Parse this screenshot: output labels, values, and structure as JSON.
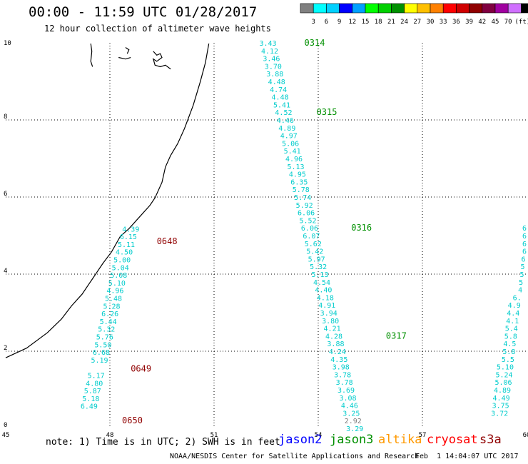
{
  "header": {
    "title": "00:00 - 11:59 UTC 01/28/2017",
    "subtitle": "12 hour collection of altimeter wave heights"
  },
  "colorbar": {
    "unit": "(ft)",
    "colors": [
      "#808080",
      "#00ffff",
      "#00d0ff",
      "#0000ff",
      "#00a0ff",
      "#00ff00",
      "#00d000",
      "#009000",
      "#ffff00",
      "#ffc000",
      "#ff8000",
      "#ff0000",
      "#d00000",
      "#900000",
      "#800040",
      "#a000a0",
      "#d070ff",
      "#000000"
    ],
    "labels": [
      "3",
      "6",
      "9",
      "12",
      "15",
      "18",
      "21",
      "24",
      "27",
      "30",
      "33",
      "36",
      "39",
      "42",
      "45",
      "70"
    ]
  },
  "footer": {
    "note": "note: 1) Time is in UTC; 2) SWH is in feet",
    "satellites": [
      {
        "name": "jason2",
        "color": "#0000ff"
      },
      {
        "name": "jason3",
        "color": "#009000"
      },
      {
        "name": "altika",
        "color": "#ff9900"
      },
      {
        "name": "cryosat",
        "color": "#ff0000"
      },
      {
        "name": "s3a",
        "color": "#900000"
      }
    ],
    "credit": "NOAA/NESDIS Center for Satellite Applications and Research",
    "timestamp": "Feb  1 14:04:07 UTC 2017"
  },
  "chart_data": {
    "type": "scatter",
    "xlim": [
      45,
      60
    ],
    "ylim": [
      0,
      10
    ],
    "xticks": [
      "45",
      "48",
      "51",
      "54",
      "57",
      "60"
    ],
    "yticks": [
      "0",
      "2",
      "4",
      "6",
      "8",
      "10"
    ],
    "grid": true,
    "tracks": [
      {
        "name": "track-1",
        "color": "#00cccc",
        "points": [
          {
            "x": 48.85,
            "y": 5.18,
            "v": "4.39"
          },
          {
            "x": 48.78,
            "y": 4.98,
            "v": "6.15"
          },
          {
            "x": 48.72,
            "y": 4.78,
            "v": "5.11"
          },
          {
            "x": 48.66,
            "y": 4.58,
            "v": "4.50"
          },
          {
            "x": 48.6,
            "y": 4.38,
            "v": "5.00"
          },
          {
            "x": 48.55,
            "y": 4.18,
            "v": "5.04"
          },
          {
            "x": 48.5,
            "y": 3.98,
            "v": "5.08"
          },
          {
            "x": 48.45,
            "y": 3.78,
            "v": "5.10"
          },
          {
            "x": 48.4,
            "y": 3.58,
            "v": "4.96"
          },
          {
            "x": 48.35,
            "y": 3.38,
            "v": "5.48"
          },
          {
            "x": 48.3,
            "y": 3.18,
            "v": "5.28"
          },
          {
            "x": 48.25,
            "y": 2.98,
            "v": "6.26"
          },
          {
            "x": 48.2,
            "y": 2.78,
            "v": "5.44"
          },
          {
            "x": 48.15,
            "y": 2.58,
            "v": "5.32"
          },
          {
            "x": 48.1,
            "y": 2.38,
            "v": "5.76"
          },
          {
            "x": 48.05,
            "y": 2.18,
            "v": "5.50"
          },
          {
            "x": 48.0,
            "y": 1.98,
            "v": "6.68"
          },
          {
            "x": 47.95,
            "y": 1.78,
            "v": "5.19"
          },
          {
            "x": 47.85,
            "y": 1.38,
            "v": "5.17"
          },
          {
            "x": 47.8,
            "y": 1.18,
            "v": "4.80"
          },
          {
            "x": 47.75,
            "y": 0.98,
            "v": "5.87"
          },
          {
            "x": 47.7,
            "y": 0.78,
            "v": "5.18"
          },
          {
            "x": 47.65,
            "y": 0.58,
            "v": "6.49"
          }
        ],
        "time_labels": [
          {
            "x": 49.35,
            "y": 4.85,
            "text": "0648",
            "color": "#900000"
          },
          {
            "x": 48.6,
            "y": 1.55,
            "text": "0649",
            "color": "#900000"
          },
          {
            "x": 48.35,
            "y": 0.2,
            "text": "0650",
            "color": "#900000"
          }
        ]
      },
      {
        "name": "track-2",
        "color": "#00cccc",
        "points": [
          {
            "x": 52.8,
            "y": 10.0,
            "v": "3.43"
          },
          {
            "x": 52.85,
            "y": 9.8,
            "v": "4.12"
          },
          {
            "x": 52.9,
            "y": 9.6,
            "v": "3.46"
          },
          {
            "x": 52.95,
            "y": 9.4,
            "v": "3.70"
          },
          {
            "x": 53.0,
            "y": 9.2,
            "v": "3.88"
          },
          {
            "x": 53.05,
            "y": 9.0,
            "v": "4.48"
          },
          {
            "x": 53.1,
            "y": 8.8,
            "v": "4.74"
          },
          {
            "x": 53.15,
            "y": 8.6,
            "v": "4.48"
          },
          {
            "x": 53.2,
            "y": 8.4,
            "v": "5.41"
          },
          {
            "x": 53.25,
            "y": 8.2,
            "v": "4.52"
          },
          {
            "x": 53.3,
            "y": 8.0,
            "v": "4.46"
          },
          {
            "x": 53.35,
            "y": 7.8,
            "v": "4.89"
          },
          {
            "x": 53.4,
            "y": 7.6,
            "v": "4.97"
          },
          {
            "x": 53.45,
            "y": 7.4,
            "v": "5.06"
          },
          {
            "x": 53.5,
            "y": 7.2,
            "v": "5.41"
          },
          {
            "x": 53.55,
            "y": 7.0,
            "v": "4.96"
          },
          {
            "x": 53.6,
            "y": 6.8,
            "v": "5.13"
          },
          {
            "x": 53.65,
            "y": 6.6,
            "v": "4.95"
          },
          {
            "x": 53.7,
            "y": 6.4,
            "v": "6.35"
          },
          {
            "x": 53.75,
            "y": 6.2,
            "v": "5.78"
          },
          {
            "x": 53.8,
            "y": 6.0,
            "v": "5.74"
          },
          {
            "x": 53.85,
            "y": 5.8,
            "v": "5.92"
          },
          {
            "x": 53.9,
            "y": 5.6,
            "v": "6.06"
          },
          {
            "x": 53.95,
            "y": 5.4,
            "v": "5.52"
          },
          {
            "x": 54.0,
            "y": 5.2,
            "v": "6.06"
          },
          {
            "x": 54.05,
            "y": 5.0,
            "v": "6.07"
          },
          {
            "x": 54.1,
            "y": 4.8,
            "v": "5.62"
          },
          {
            "x": 54.15,
            "y": 4.6,
            "v": "5.42"
          },
          {
            "x": 54.2,
            "y": 4.4,
            "v": "5.97"
          },
          {
            "x": 54.25,
            "y": 4.2,
            "v": "5.32"
          },
          {
            "x": 54.3,
            "y": 4.0,
            "v": "5.13"
          },
          {
            "x": 54.35,
            "y": 3.8,
            "v": "4.54"
          },
          {
            "x": 54.4,
            "y": 3.6,
            "v": "4.40"
          },
          {
            "x": 54.45,
            "y": 3.4,
            "v": "4.18"
          },
          {
            "x": 54.5,
            "y": 3.2,
            "v": "4.91"
          },
          {
            "x": 54.55,
            "y": 3.0,
            "v": "3.94"
          },
          {
            "x": 54.6,
            "y": 2.8,
            "v": "3.80"
          },
          {
            "x": 54.65,
            "y": 2.6,
            "v": "4.21"
          },
          {
            "x": 54.7,
            "y": 2.4,
            "v": "4.28"
          },
          {
            "x": 54.75,
            "y": 2.2,
            "v": "3.88"
          },
          {
            "x": 54.8,
            "y": 2.0,
            "v": "4.24"
          },
          {
            "x": 54.85,
            "y": 1.8,
            "v": "4.35"
          },
          {
            "x": 54.9,
            "y": 1.6,
            "v": "3.98"
          },
          {
            "x": 54.95,
            "y": 1.4,
            "v": "3.78"
          },
          {
            "x": 55.0,
            "y": 1.2,
            "v": "3.78"
          },
          {
            "x": 55.05,
            "y": 1.0,
            "v": "3.69"
          },
          {
            "x": 55.1,
            "y": 0.8,
            "v": "3.08"
          },
          {
            "x": 55.15,
            "y": 0.6,
            "v": "4.46"
          },
          {
            "x": 55.2,
            "y": 0.4,
            "v": "3.25"
          },
          {
            "x": 55.25,
            "y": 0.2,
            "v": "2.92",
            "color": "#808080"
          },
          {
            "x": 55.3,
            "y": 0.0,
            "v": "3.29"
          }
        ],
        "time_labels": [
          {
            "x": 53.6,
            "y": 10.0,
            "text": "0314",
            "color": "#009000"
          },
          {
            "x": 53.95,
            "y": 8.2,
            "text": "0315",
            "color": "#009000"
          },
          {
            "x": 54.95,
            "y": 5.2,
            "text": "0316",
            "color": "#009000"
          },
          {
            "x": 55.95,
            "y": 2.4,
            "text": "0317",
            "color": "#009000"
          }
        ]
      },
      {
        "name": "track-3",
        "color": "#00cccc",
        "points": [
          {
            "x": 60.0,
            "y": 5.2,
            "v": "6"
          },
          {
            "x": 60.0,
            "y": 5.0,
            "v": "6"
          },
          {
            "x": 60.0,
            "y": 4.8,
            "v": "6"
          },
          {
            "x": 60.0,
            "y": 4.6,
            "v": "6"
          },
          {
            "x": 59.97,
            "y": 4.4,
            "v": "6"
          },
          {
            "x": 59.95,
            "y": 4.2,
            "v": "5"
          },
          {
            "x": 59.93,
            "y": 4.0,
            "v": "5"
          },
          {
            "x": 59.9,
            "y": 3.8,
            "v": "5"
          },
          {
            "x": 59.88,
            "y": 3.6,
            "v": "4"
          },
          {
            "x": 59.85,
            "y": 3.4,
            "v": "6."
          },
          {
            "x": 59.83,
            "y": 3.2,
            "v": "4.9"
          },
          {
            "x": 59.8,
            "y": 3.0,
            "v": "4.4"
          },
          {
            "x": 59.78,
            "y": 2.8,
            "v": "4.1"
          },
          {
            "x": 59.75,
            "y": 2.6,
            "v": "5.4"
          },
          {
            "x": 59.73,
            "y": 2.4,
            "v": "5.8"
          },
          {
            "x": 59.7,
            "y": 2.2,
            "v": "4.5"
          },
          {
            "x": 59.68,
            "y": 2.0,
            "v": "5.8"
          },
          {
            "x": 59.65,
            "y": 1.8,
            "v": "5.5"
          },
          {
            "x": 59.63,
            "y": 1.6,
            "v": "5.10"
          },
          {
            "x": 59.6,
            "y": 1.4,
            "v": "5.24"
          },
          {
            "x": 59.58,
            "y": 1.2,
            "v": "5.06"
          },
          {
            "x": 59.55,
            "y": 1.0,
            "v": "4.89"
          },
          {
            "x": 59.52,
            "y": 0.8,
            "v": "4.49"
          },
          {
            "x": 59.5,
            "y": 0.6,
            "v": "3.75"
          },
          {
            "x": 59.47,
            "y": 0.4,
            "v": "3.72"
          }
        ],
        "time_labels": []
      }
    ],
    "coastline": [
      [
        45.0,
        1.83
      ],
      [
        45.6,
        2.08
      ],
      [
        46.2,
        2.48
      ],
      [
        46.6,
        2.83
      ],
      [
        46.9,
        3.18
      ],
      [
        47.2,
        3.48
      ],
      [
        47.5,
        3.88
      ],
      [
        47.8,
        4.28
      ],
      [
        48.05,
        4.58
      ],
      [
        48.3,
        4.98
      ],
      [
        48.55,
        5.18
      ],
      [
        48.85,
        5.48
      ],
      [
        49.15,
        5.78
      ],
      [
        49.3,
        5.98
      ],
      [
        49.5,
        6.38
      ],
      [
        49.6,
        6.78
      ],
      [
        49.75,
        7.08
      ],
      [
        49.95,
        7.38
      ],
      [
        50.15,
        7.78
      ],
      [
        50.4,
        8.38
      ],
      [
        50.6,
        8.98
      ],
      [
        50.75,
        9.48
      ],
      [
        50.85,
        9.98
      ]
    ],
    "islands": [
      [
        [
          47.45,
          9.98
        ],
        [
          47.48,
          9.78
        ],
        [
          47.45,
          9.52
        ],
        [
          47.5,
          9.38
        ]
      ],
      [
        [
          48.45,
          9.88
        ],
        [
          48.55,
          9.82
        ],
        [
          48.5,
          9.72
        ]
      ],
      [
        [
          48.25,
          9.62
        ],
        [
          48.45,
          9.58
        ],
        [
          48.6,
          9.62
        ]
      ],
      [
        [
          49.25,
          9.78
        ],
        [
          49.35,
          9.68
        ],
        [
          49.45,
          9.72
        ],
        [
          49.5,
          9.62
        ],
        [
          49.35,
          9.52
        ],
        [
          49.25,
          9.58
        ],
        [
          49.3,
          9.42
        ],
        [
          49.45,
          9.38
        ],
        [
          49.6,
          9.42
        ],
        [
          49.75,
          9.32
        ]
      ]
    ]
  }
}
